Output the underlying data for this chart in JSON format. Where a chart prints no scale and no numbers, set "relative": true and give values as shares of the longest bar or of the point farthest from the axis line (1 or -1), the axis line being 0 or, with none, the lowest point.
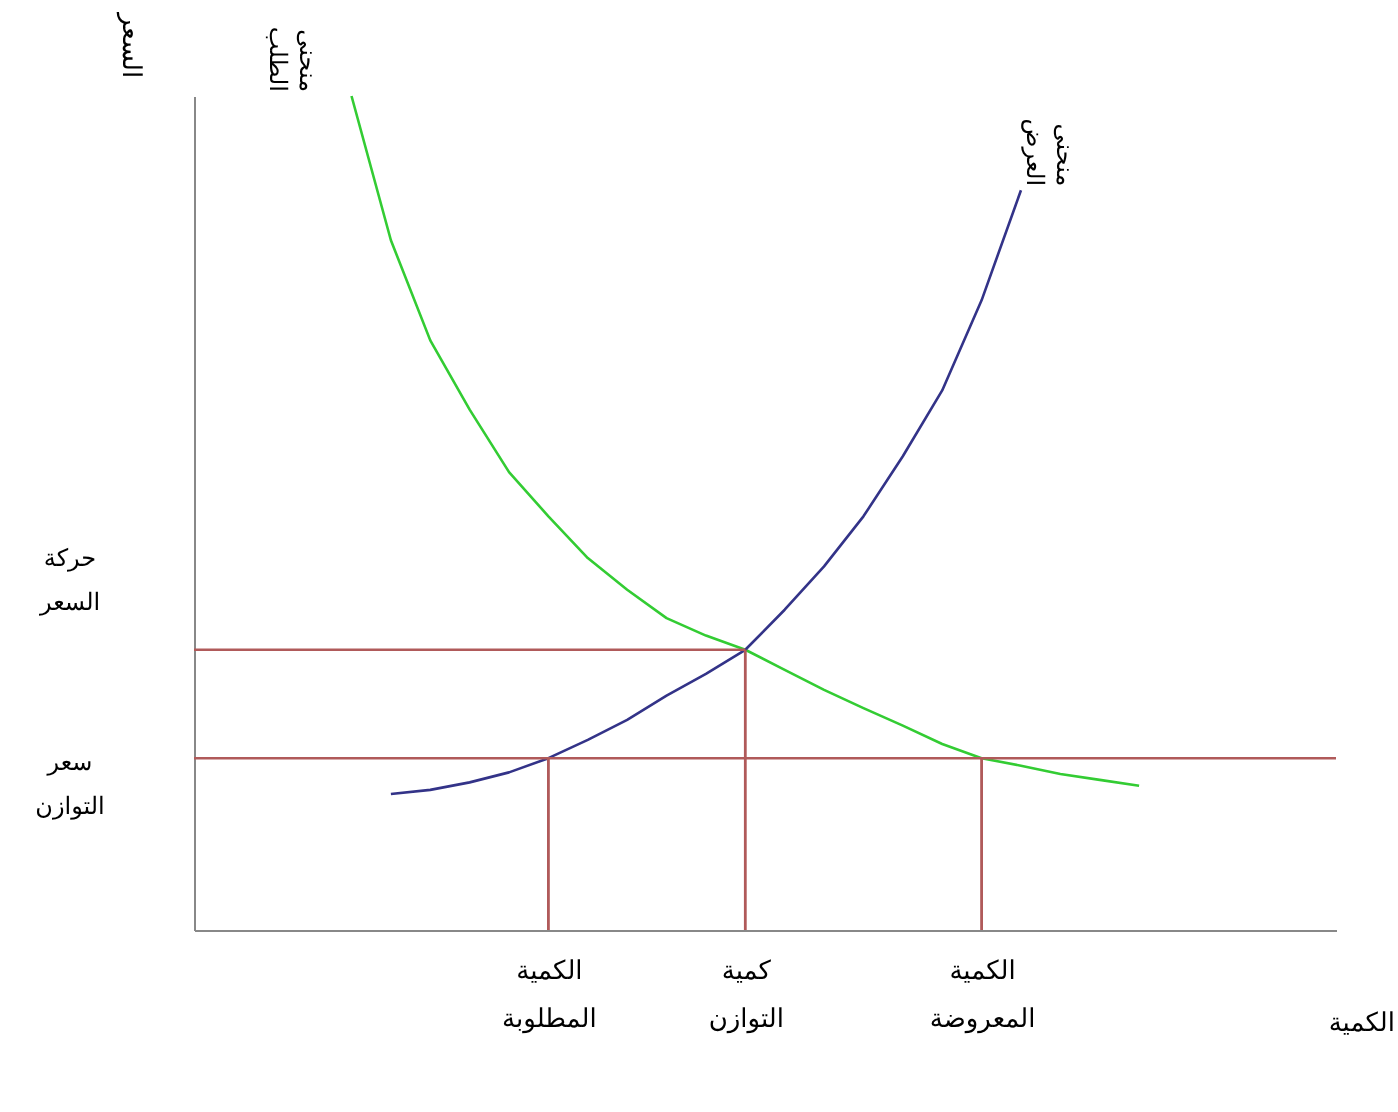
{
  "chart_data": {
    "type": "line",
    "relative": true,
    "xlabel": "الكمية",
    "ylabel": "السعر",
    "marker": "none",
    "grid": false,
    "legend": false,
    "categories": [
      null,
      null,
      null,
      null,
      null,
      null,
      null,
      null,
      null,
      "الكمية المطلوبة",
      null,
      null,
      null,
      null,
      "كمية التوازن",
      null,
      null,
      null,
      null,
      null,
      "الكمية المعروضة",
      null,
      null,
      null,
      null,
      null,
      null,
      null,
      null,
      null
    ],
    "series": [
      {
        "name": "منحنى الطلب",
        "color": "#33cc33",
        "values": [
          null,
          null,
          null,
          null,
          1,
          0.827,
          0.707,
          0.624,
          0.549,
          0.496,
          0.446,
          0.408,
          0.374,
          0.353,
          0.336,
          0.312,
          0.288,
          0.266,
          0.245,
          0.223,
          0.206,
          0.197,
          0.187,
          0.18,
          0.173,
          null,
          null,
          null,
          null,
          null
        ]
      },
      {
        "name": "منحنى العرض",
        "color": "#333388",
        "values": [
          null,
          null,
          null,
          null,
          null,
          0.163,
          0.168,
          0.177,
          0.189,
          0.206,
          0.228,
          0.252,
          0.281,
          0.307,
          0.336,
          0.384,
          0.436,
          0.496,
          0.568,
          0.647,
          0.755,
          0.887,
          null,
          null,
          null,
          null,
          null,
          null,
          null,
          null
        ]
      },
      {
        "color": "#b05a5a",
        "values": [
          0.336,
          0.336,
          0.336,
          0.336,
          0.336,
          0.336,
          0.336,
          0.336,
          0.336,
          0.336,
          0.336,
          0.336,
          0.336,
          0.336,
          0.336,
          null,
          null,
          null,
          null,
          null,
          null,
          null,
          null,
          null,
          null,
          null,
          null,
          null,
          null,
          null
        ]
      },
      {
        "color": "#b05a5a",
        "values": [
          0.206,
          0.206,
          0.206,
          0.206,
          0.206,
          0.206,
          0.206,
          0.206,
          0.206,
          0.206,
          0.206,
          0.206,
          0.206,
          0.206,
          0.206,
          0.206,
          0.206,
          0.206,
          0.206,
          0.206,
          0.206,
          0.206,
          0.206,
          0.206,
          0.206,
          0.206,
          0.206,
          0.206,
          0.206,
          0.206
        ]
      },
      {
        "type": "bar",
        "color": "#b05a5a",
        "values": [
          null,
          null,
          null,
          null,
          null,
          null,
          null,
          null,
          null,
          0.206,
          null,
          null,
          null,
          null,
          0.336,
          null,
          null,
          null,
          null,
          null,
          0.206,
          null,
          null,
          null,
          null,
          null,
          null,
          null,
          null,
          null
        ]
      }
    ],
    "annotations": [
      "حركة السعر",
      "سعر التوازن"
    ]
  }
}
